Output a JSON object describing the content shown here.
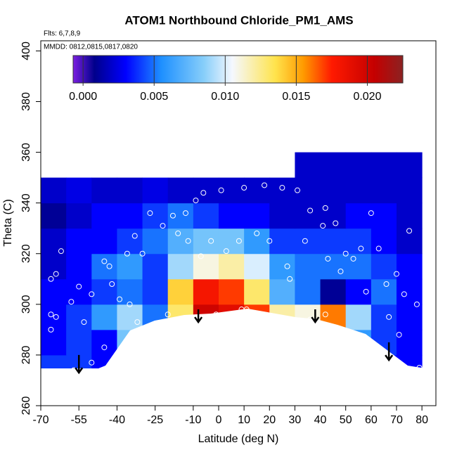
{
  "chart_data": {
    "type": "heatmap",
    "title": "ATOM1 Northbound Chloride_PM1_AMS",
    "flights_note": "Flts: 6,7,8,9",
    "dates_note": "MMDD: 0812,0815,0817,0820",
    "xlabel": "Latitude (deg N)",
    "ylabel": "Theta (C)",
    "xlim": [
      -70,
      85.5
    ],
    "ylim": [
      260,
      404
    ],
    "xticks": [
      -70,
      -55,
      -40,
      -25,
      -10,
      0,
      10,
      20,
      30,
      40,
      50,
      60,
      70,
      80
    ],
    "yticks": [
      260,
      280,
      300,
      320,
      340,
      360,
      380,
      400
    ],
    "x": [
      -65,
      -55,
      -45,
      -35,
      -25,
      -15,
      -5,
      5,
      15,
      25,
      35,
      45,
      55,
      65,
      75
    ],
    "y": [
      275,
      285,
      295,
      305,
      315,
      325,
      335,
      345,
      355
    ],
    "z": [
      [
        0.004,
        0.004,
        0.003,
        0.003,
        0.003,
        0.003,
        0.003,
        0.003,
        0.003,
        0.003,
        0.003,
        0.003,
        0.004,
        0.003,
        0.003
      ],
      [
        0.003,
        0.004,
        0.003,
        0.008,
        0.005,
        0.005,
        0.005,
        0.005,
        0.005,
        0.005,
        0.005,
        0.005,
        0.006,
        0.004,
        0.003
      ],
      [
        0.003,
        0.004,
        0.006,
        0.009,
        0.005,
        0.013,
        0.02,
        0.019,
        0.017,
        0.012,
        0.011,
        0.016,
        0.009,
        0.004,
        0.003
      ],
      [
        0.003,
        0.003,
        0.004,
        0.005,
        0.004,
        0.014,
        0.018,
        0.017,
        0.013,
        0.007,
        0.005,
        0.001,
        0.003,
        0.005,
        0.003
      ],
      [
        0.002,
        0.003,
        0.005,
        0.006,
        0.004,
        0.009,
        0.011,
        0.012,
        0.01,
        0.006,
        0.005,
        0.005,
        0.005,
        0.004,
        0.003
      ],
      [
        0.002,
        0.003,
        0.003,
        0.004,
        0.005,
        0.007,
        0.008,
        0.008,
        0.006,
        0.004,
        0.004,
        0.004,
        0.004,
        0.003,
        0.002
      ],
      [
        0.001,
        0.002,
        0.003,
        0.003,
        0.004,
        0.005,
        0.004,
        0.003,
        0.003,
        0.002,
        0.002,
        0.002,
        0.003,
        0.003,
        0.002
      ],
      [
        0.002,
        0.0025,
        0.002,
        0.002,
        0.0025,
        0.002,
        0.002,
        0.002,
        0.002,
        0.002,
        0.002,
        0.002,
        0.002,
        0.002,
        0.002
      ],
      [
        null,
        null,
        null,
        null,
        null,
        null,
        null,
        null,
        null,
        null,
        0.002,
        0.002,
        0.002,
        0.002,
        0.002
      ]
    ],
    "clim": [
      -0.0007,
      0.0225
    ],
    "cticks": [
      {
        "value": 0,
        "label": "0.000"
      },
      {
        "value": 0.005,
        "label": "0.005"
      },
      {
        "value": 0.01,
        "label": "0.010"
      },
      {
        "value": 0.015,
        "label": "0.015"
      },
      {
        "value": 0.02,
        "label": "0.020"
      }
    ],
    "colorscale": [
      {
        "value": -0.0007,
        "color": "#7b1fe0"
      },
      {
        "value": 0.0008,
        "color": "#00008b"
      },
      {
        "value": 0.003,
        "color": "#0000ff"
      },
      {
        "value": 0.0055,
        "color": "#1e90ff"
      },
      {
        "value": 0.0085,
        "color": "#87cefa"
      },
      {
        "value": 0.0105,
        "color": "#f5f8ff"
      },
      {
        "value": 0.0135,
        "color": "#ffe44d"
      },
      {
        "value": 0.0155,
        "color": "#ff9a00"
      },
      {
        "value": 0.0175,
        "color": "#ff1a00"
      },
      {
        "value": 0.0205,
        "color": "#c40000"
      },
      {
        "value": 0.0225,
        "color": "#8b2222"
      }
    ],
    "points": {
      "x": [
        -66,
        -64,
        -62,
        -66,
        -66,
        -64,
        -58,
        -55,
        -53,
        -50,
        -42,
        -39,
        -43,
        -45,
        -36,
        -33,
        -30,
        -32,
        -27,
        -22,
        -18,
        -13,
        -9,
        -6,
        -12,
        -16,
        -7,
        -3,
        3,
        1,
        8,
        10,
        15,
        18,
        20,
        25,
        27,
        28,
        31,
        34,
        36,
        41,
        42,
        43,
        46,
        48,
        50,
        53,
        56,
        58,
        60,
        63,
        66,
        70,
        73,
        75,
        78,
        79,
        67,
        71,
        36,
        42,
        -1,
        9,
        11,
        -45,
        -50,
        -55,
        -57,
        -35,
        -20
      ],
      "y": [
        310,
        312,
        321,
        296,
        290,
        295,
        301,
        307,
        293,
        304,
        308,
        302,
        315,
        317,
        320,
        327,
        320,
        293,
        336,
        331,
        335,
        336,
        341,
        344,
        325,
        328,
        319,
        325,
        321,
        345,
        325,
        346,
        328,
        347,
        325,
        346,
        315,
        310,
        345,
        325,
        337,
        331,
        338,
        318,
        332,
        313,
        320,
        318,
        322,
        305,
        336,
        322,
        308,
        312,
        304,
        329,
        300,
        275,
        295,
        288,
        294,
        296,
        296,
        298,
        298,
        283,
        277,
        272,
        274,
        300,
        296
      ]
    },
    "arrows": [
      {
        "x": -55,
        "from": 280,
        "to": 273
      },
      {
        "x": -8,
        "from": 298,
        "to": 293
      },
      {
        "x": 38,
        "from": 298,
        "to": 293
      },
      {
        "x": 67,
        "from": 285,
        "to": 278
      }
    ]
  }
}
